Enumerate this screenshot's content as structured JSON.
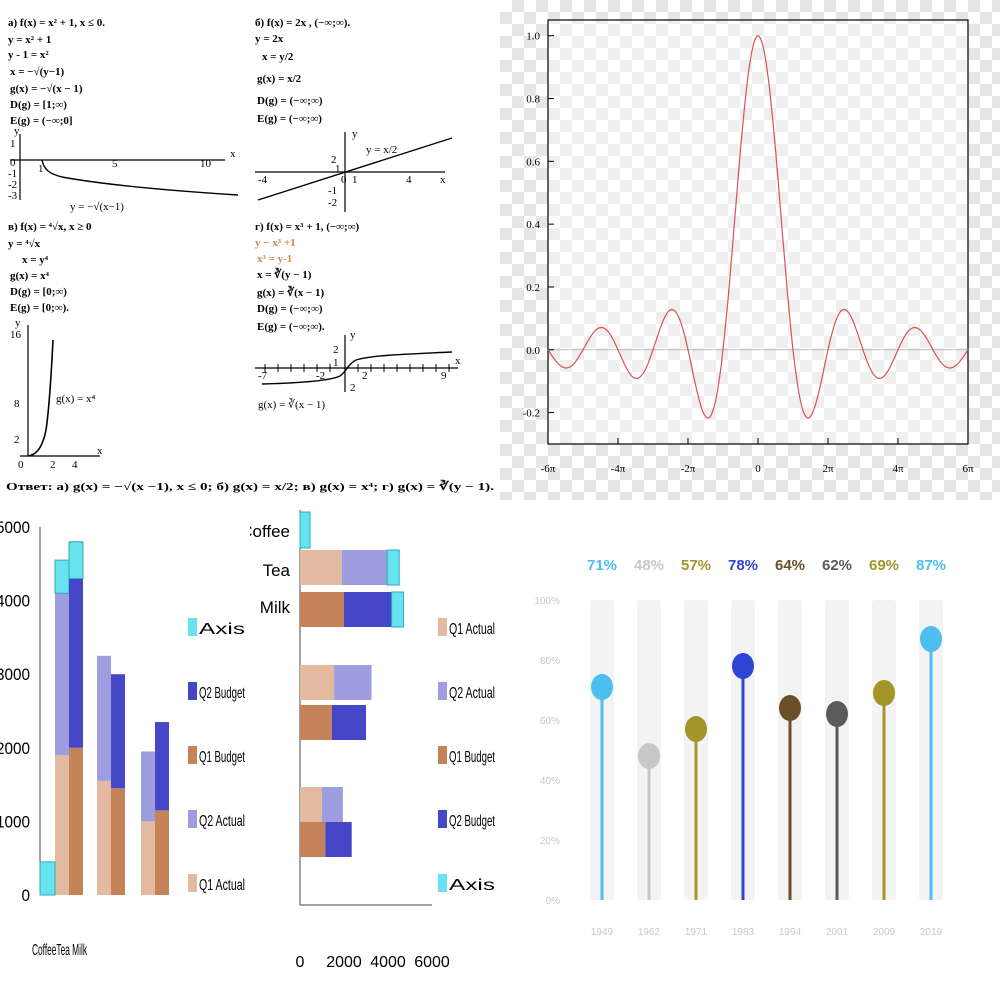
{
  "math_worksheet": {
    "a": {
      "lines": [
        "а) f(x) = x² + 1,  x ≤ 0.",
        "y = x² + 1",
        "y - 1 = x²",
        "x = −√(y−1)",
        "g(x) = −√(x − 1)",
        "D(g) = [1;∞)",
        "E(g) = (−∞;0]"
      ],
      "graph_label": "y = −√(x−1)",
      "axis_x": "x",
      "axis_y": "y",
      "x_ticks": [
        "1",
        "5",
        "10"
      ],
      "y_ticks": [
        "1",
        "0",
        "-1",
        "-2",
        "-3"
      ]
    },
    "b": {
      "lines": [
        "б) f(x) = 2x ,  (−∞;∞).",
        "y = 2x",
        "x = y/2",
        "g(x) = x/2",
        "D(g) = (−∞;∞)",
        "E(g) = (−∞;∞)"
      ],
      "graph_label": "y = x/2",
      "axis_x": "x",
      "axis_y": "y",
      "x_ticks": [
        "-4",
        "0",
        "1",
        "4"
      ],
      "y_ticks": [
        "2",
        "1",
        "-1",
        "-2"
      ]
    },
    "c": {
      "lines": [
        "в) f(x) = ⁴√x,  x ≥ 0",
        "y = ⁴√x",
        "x = y⁴",
        "g(x) = x⁴",
        "D(g) = [0;∞)",
        "E(g) = [0;∞)."
      ],
      "graph_label": "g(x) = x⁴",
      "axis_x": "x",
      "axis_y": "y",
      "x_ticks": [
        "0",
        "2",
        "4"
      ],
      "y_ticks": [
        "16",
        "8",
        "2"
      ]
    },
    "d": {
      "lines": [
        "г) f(x) = x³ + 1,  (−∞;∞)",
        "y − x³ +1",
        "x³ = y-1",
        "x = ∛(y − 1)",
        "g(x) = ∛(x − 1)",
        "D(g) = (−∞;∞)",
        "E(g) = (−∞;∞)."
      ],
      "graph_label": "g(x) = ∛(x − 1)",
      "axis_x": "x",
      "axis_y": "y",
      "x_ticks": [
        "-7",
        "-2",
        "2",
        "9"
      ],
      "y_ticks": [
        "2",
        "1",
        "2"
      ]
    },
    "answer": "Ответ: а) g(x) = −√(x −1),  x ≤ 0;  б) g(x) = x/2;  в) g(x) = x⁴;  г) g(x) = ∛(y − 1)."
  },
  "chart_data": [
    {
      "type": "line",
      "title": "",
      "x_tick_labels": [
        "-6π",
        "-4π",
        "-2π",
        "0",
        "2π",
        "4π",
        "6π"
      ],
      "y_tick_labels": [
        "-0.2",
        "0.0",
        "0.2",
        "0.4",
        "0.6",
        "0.8",
        "1.0"
      ],
      "xlim": [
        -18.85,
        18.85
      ],
      "ylim": [
        -0.3,
        1.05
      ],
      "function": "sin(x)/x",
      "series": [
        {
          "color": "#d9534f",
          "x": [
            -18.85,
            -17.28,
            -15.71,
            -14.14,
            -12.57,
            -10.99,
            -9.42,
            -7.85,
            -6.28,
            -4.49,
            -3.14,
            -1.57,
            0,
            1.57,
            3.14,
            4.49,
            6.28,
            7.85,
            9.42,
            10.99,
            12.57,
            14.14,
            15.71,
            17.28,
            18.85
          ],
          "y": [
            0,
            -0.058,
            0,
            0.071,
            0,
            -0.091,
            0,
            0.127,
            0,
            -0.217,
            0,
            0.637,
            1.0,
            0.637,
            0,
            -0.217,
            0,
            0.127,
            0,
            -0.091,
            0,
            0.071,
            0,
            -0.058,
            0
          ]
        }
      ],
      "grid": false,
      "colors": {
        "line": "#d9534f",
        "zero_line": "#bbbbbb"
      }
    },
    {
      "type": "bar",
      "stacked": true,
      "orientation": "vertical",
      "categories": [
        "Coffee",
        "Tea",
        "Milk"
      ],
      "category_axis_text": "CoffeeTea Milk",
      "y_tick_labels": [
        "0",
        "1000",
        "2000",
        "3000",
        "4000",
        "5000"
      ],
      "ylim": [
        0,
        5000
      ],
      "groups": [
        {
          "name": "Actual",
          "stack": [
            {
              "series": "Q1 Actual",
              "values": [
                1900,
                1550,
                1000
              ]
            },
            {
              "series": "Q2 Actual",
              "values": [
                2200,
                1700,
                950
              ]
            }
          ]
        },
        {
          "name": "Budget",
          "stack": [
            {
              "series": "Q1 Budget",
              "values": [
                2000,
                1450,
                1150
              ]
            },
            {
              "series": "Q2 Budget",
              "values": [
                2300,
                1550,
                1200
              ]
            }
          ]
        }
      ],
      "axis_series": {
        "series": "Axis",
        "values": [
          450,
          500,
          450
        ]
      },
      "legend": [
        "Axis",
        "Q2 Budget",
        "Q1 Budget",
        "Q2 Actual",
        "Q1 Actual"
      ],
      "colors": {
        "Q1 Actual": "#e3b99f",
        "Q2 Actual": "#9d9de0",
        "Q1 Budget": "#c5835a",
        "Q2 Budget": "#4646c9",
        "Axis": "#66e3ee"
      },
      "legend_position": "right"
    },
    {
      "type": "bar",
      "stacked": true,
      "orientation": "horizontal",
      "categories": [
        "Coffee",
        "Tea",
        "Milk"
      ],
      "x_tick_labels": [
        "0",
        "2000",
        "4000",
        "6000"
      ],
      "xlim": [
        0,
        6000
      ],
      "groups": [
        {
          "name": "Actual",
          "stack": [
            {
              "series": "Q1 Actual",
              "values": [
                1000,
                1550,
                1900
              ]
            },
            {
              "series": "Q2 Actual",
              "values": [
                950,
                1700,
                2200
              ]
            }
          ]
        },
        {
          "name": "Budget",
          "stack": [
            {
              "series": "Q1 Budget",
              "values": [
                1150,
                1450,
                2000
              ]
            },
            {
              "series": "Q2 Budget",
              "values": [
                1200,
                1550,
                2300
              ]
            }
          ]
        }
      ],
      "axis_series": {
        "series": "Axis",
        "values": [
          450,
          500,
          450
        ]
      },
      "legend": [
        "Q1 Actual",
        "Q2 Actual",
        "Q1 Budget",
        "Q2 Budget",
        "Axis"
      ],
      "colors": {
        "Q1 Actual": "#e3b99f",
        "Q2 Actual": "#9d9de0",
        "Q1 Budget": "#c5835a",
        "Q2 Budget": "#4646c9",
        "Axis": "#66e3ee"
      },
      "legend_position": "right"
    },
    {
      "type": "bar",
      "style": "lollipop",
      "categories": [
        "1949",
        "1962",
        "1971",
        "1983",
        "1994",
        "2001",
        "2009",
        "2019"
      ],
      "values": [
        71,
        48,
        57,
        78,
        64,
        62,
        69,
        87
      ],
      "value_labels": [
        "71%",
        "48%",
        "57%",
        "78%",
        "64%",
        "62%",
        "69%",
        "87%"
      ],
      "y_tick_labels": [
        "0%",
        "20%",
        "40%",
        "60%",
        "80%",
        "100%"
      ],
      "ylim": [
        0,
        100
      ],
      "colors": [
        "#4dbfee",
        "#c8c8c8",
        "#a3952a",
        "#2e45d6",
        "#6b4e2a",
        "#5a5a5a",
        "#a3952a",
        "#4dbfee"
      ]
    }
  ]
}
